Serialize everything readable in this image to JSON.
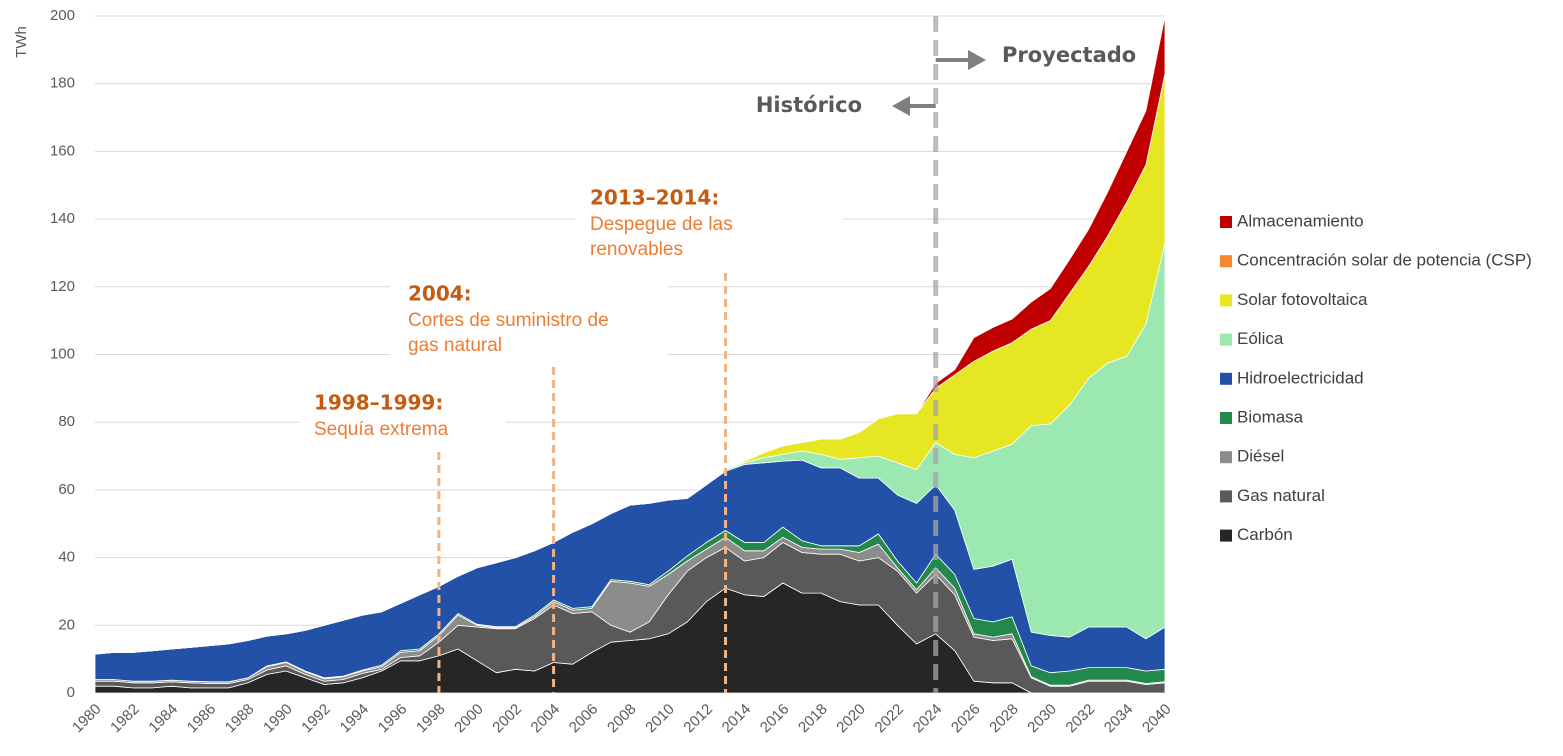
{
  "chart_data": {
    "type": "stacked_area",
    "y_label": "TWh",
    "categories": [
      "1980",
      null,
      "1982",
      null,
      "1984",
      null,
      "1986",
      null,
      "1988",
      null,
      "1990",
      null,
      "1992",
      null,
      "1994",
      null,
      "1996",
      null,
      "1998",
      null,
      "2000",
      null,
      "2002",
      null,
      "2004",
      null,
      "2006",
      null,
      "2008",
      null,
      "2010",
      null,
      "2012",
      null,
      "2014",
      null,
      "2016",
      null,
      "2018",
      null,
      "2020",
      null,
      "2022",
      null,
      "2024",
      null,
      "2026",
      null,
      "2028",
      null,
      "2030",
      null,
      "2032",
      null,
      "2034",
      null,
      "2040"
    ],
    "ylim": [
      0,
      200
    ],
    "yticks": [
      0,
      20,
      40,
      60,
      80,
      100,
      120,
      140,
      160,
      180,
      200
    ],
    "grid": true,
    "legend": "right",
    "series": [
      {
        "name": "Carbón",
        "color": "#262626",
        "values": [
          2,
          2,
          1.5,
          1.5,
          2,
          1.5,
          1.5,
          1.5,
          3,
          5.5,
          6.5,
          4.5,
          2.5,
          3,
          4.5,
          6.5,
          9.5,
          9.5,
          11,
          13,
          9.5,
          6,
          7,
          6.5,
          9,
          8.5,
          12,
          15,
          15.5,
          16,
          17.5,
          21,
          27,
          31,
          29,
          28.5,
          32.5,
          29.5,
          29.5,
          27,
          26,
          26,
          20,
          14.5,
          17.5,
          12.5,
          3.5,
          3,
          3,
          0,
          0,
          0,
          0,
          0,
          0,
          0,
          0
        ]
      },
      {
        "name": "Gas natural",
        "color": "#595959",
        "values": [
          1.5,
          1.5,
          1.5,
          1.5,
          1.3,
          1.5,
          1.3,
          1.3,
          1,
          1.3,
          1.5,
          1,
          1,
          1,
          1.3,
          0.5,
          1,
          1.5,
          4,
          7,
          10,
          13,
          12,
          15.5,
          17,
          15,
          12,
          5,
          2.5,
          5,
          11.5,
          15,
          13,
          12,
          10,
          11.5,
          12,
          12,
          11.5,
          14,
          13,
          14,
          16,
          15,
          17.5,
          16.5,
          13,
          12.5,
          13,
          4.5,
          2,
          2,
          3.5,
          3.5,
          3.5,
          2.5,
          3
        ]
      },
      {
        "name": "Diésel",
        "color": "#8c8c8c",
        "values": [
          0.5,
          0.5,
          0.5,
          0.5,
          0.5,
          0.5,
          0.5,
          0.5,
          0.5,
          1,
          1,
          0.8,
          0.7,
          0.8,
          0.7,
          0.8,
          1.5,
          1.5,
          2,
          3,
          0.5,
          0.3,
          0.3,
          0.5,
          1,
          1,
          1,
          13,
          14.5,
          10.5,
          6,
          3,
          2.5,
          3,
          3,
          2,
          1.5,
          1.5,
          1.5,
          1.5,
          2.5,
          4,
          1,
          1,
          2,
          2,
          1,
          1,
          1.5,
          0.3,
          0.3,
          0.3,
          0.3,
          0.3,
          0.3,
          0.3,
          0.3
        ]
      },
      {
        "name": "Biomasa",
        "color": "#23884c",
        "values": [
          0,
          0,
          0,
          0,
          0,
          0,
          0,
          0,
          0,
          0.2,
          0.2,
          0.2,
          0.3,
          0.2,
          0.3,
          0.4,
          0.5,
          0.5,
          0.5,
          0.5,
          0.3,
          0.3,
          0.3,
          0.5,
          0.5,
          0.5,
          0.5,
          0.5,
          0.5,
          0.5,
          1,
          1.5,
          2,
          2,
          2.5,
          2.5,
          3,
          2,
          1,
          1,
          2,
          3,
          2,
          2,
          4,
          4,
          4.5,
          4.5,
          5,
          3.2,
          3.7,
          4.2,
          3.7,
          3.7,
          3.7,
          3.7,
          3.7
        ]
      },
      {
        "name": "Hidroelectricidad",
        "color": "#2451a8",
        "values": [
          7.5,
          8,
          8.5,
          9,
          9.2,
          10,
          10.7,
          11.2,
          11,
          8.8,
          8.3,
          12,
          15.5,
          16.5,
          16.2,
          15.8,
          14,
          16,
          14,
          11,
          16.7,
          18.9,
          20.4,
          19,
          17,
          22.5,
          24.5,
          19.5,
          22.5,
          24,
          21,
          17,
          17,
          17.5,
          23,
          23.5,
          19.5,
          23.8,
          23,
          23,
          20,
          16.5,
          19.5,
          23.5,
          20.5,
          19,
          14.5,
          16.5,
          17,
          10,
          11,
          10,
          12,
          12,
          12,
          9.5,
          12.5
        ]
      },
      {
        "name": "Eólica",
        "color": "#9be8b0",
        "values": [
          0,
          0,
          0,
          0,
          0,
          0,
          0,
          0,
          0,
          0,
          0,
          0,
          0,
          0,
          0,
          0,
          0,
          0,
          0,
          0,
          0,
          0,
          0,
          0,
          0,
          0,
          0,
          0,
          0,
          0,
          0,
          0,
          0,
          0.5,
          0.5,
          1.5,
          2,
          2.7,
          4,
          2.5,
          6,
          6.5,
          9.5,
          10,
          12.5,
          16.5,
          33,
          34,
          34,
          61,
          62.5,
          68.5,
          73.5,
          78,
          80,
          93,
          113.5
        ]
      },
      {
        "name": "Solar fotovoltaica",
        "color": "#e6e622",
        "values": [
          0,
          0,
          0,
          0,
          0,
          0,
          0,
          0,
          0,
          0,
          0,
          0,
          0,
          0,
          0,
          0,
          0,
          0,
          0,
          0,
          0,
          0,
          0,
          0,
          0,
          0,
          0,
          0,
          0,
          0,
          0,
          0,
          0,
          0,
          0.5,
          1.5,
          2.5,
          2.5,
          4.5,
          6,
          7.5,
          11,
          14.5,
          16.5,
          16,
          23.5,
          28.5,
          29.5,
          30,
          28.5,
          30.5,
          33,
          33,
          37.5,
          45.5,
          47,
          50
        ]
      },
      {
        "name": "Concentración solar de potencia (CSP)",
        "color": "#f4892e",
        "values": [
          0,
          0,
          0,
          0,
          0,
          0,
          0,
          0,
          0,
          0,
          0,
          0,
          0,
          0,
          0,
          0,
          0,
          0,
          0,
          0,
          0,
          0,
          0,
          0,
          0,
          0,
          0,
          0,
          0,
          0,
          0,
          0,
          0,
          0,
          0,
          0,
          0,
          0,
          0,
          0,
          0,
          0,
          0,
          0,
          0,
          0,
          0,
          0,
          0,
          0,
          0,
          0,
          0,
          0,
          0,
          0,
          0
        ]
      },
      {
        "name": "Almacenamiento",
        "color": "#c00000",
        "values": [
          0,
          0,
          0,
          0,
          0,
          0,
          0,
          0,
          0,
          0,
          0,
          0,
          0,
          0,
          0,
          0,
          0,
          0,
          0,
          0,
          0,
          0,
          0,
          0,
          0,
          0,
          0,
          0,
          0,
          0,
          0,
          0,
          0,
          0,
          0,
          0,
          0,
          0,
          0,
          0,
          0,
          0,
          0,
          0,
          1.5,
          1.5,
          7,
          7,
          7,
          8,
          9.5,
          10,
          11,
          13,
          15,
          16,
          17
        ]
      }
    ],
    "annotations": [
      {
        "title": "1998–1999:",
        "text": [
          "Sequía extrema"
        ]
      },
      {
        "title": "2004:",
        "text": [
          "Cortes de suministro de",
          "gas natural"
        ]
      },
      {
        "title": "2013–2014:",
        "text": [
          "Despegue de las",
          "renovables"
        ]
      }
    ],
    "periods": [
      "Histórico",
      "Proyectado"
    ]
  }
}
